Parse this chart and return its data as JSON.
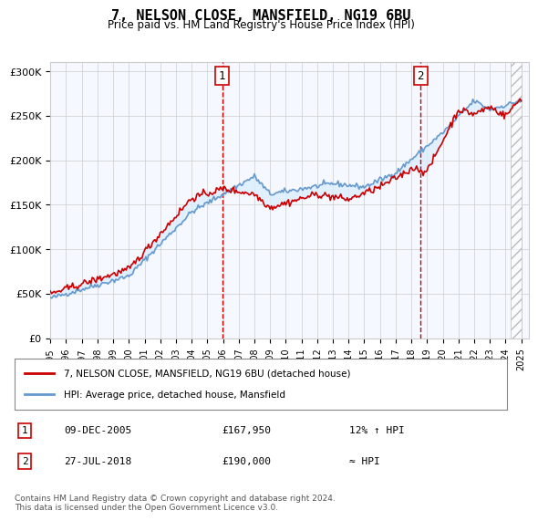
{
  "title": "7, NELSON CLOSE, MANSFIELD, NG19 6BU",
  "subtitle": "Price paid vs. HM Land Registry's House Price Index (HPI)",
  "ylabel_ticks": [
    0,
    50000,
    100000,
    150000,
    200000,
    250000,
    300000
  ],
  "ylabel_labels": [
    "£0",
    "£50K",
    "£100K",
    "£150K",
    "£200K",
    "£250K",
    "£300K"
  ],
  "xlim": [
    1995.0,
    2025.5
  ],
  "ylim": [
    0,
    310000
  ],
  "sale1_year": 2005.95,
  "sale1_price": 167950,
  "sale1_label": "1",
  "sale1_date": "09-DEC-2005",
  "sale1_text": "£167,950",
  "sale1_hpi": "12% ↑ HPI",
  "sale2_year": 2018.58,
  "sale2_price": 190000,
  "sale2_label": "2",
  "sale2_date": "27-JUL-2018",
  "sale2_text": "£190,000",
  "sale2_hpi": "≈ HPI",
  "line1_label": "7, NELSON CLOSE, MANSFIELD, NG19 6BU (detached house)",
  "line2_label": "HPI: Average price, detached house, Mansfield",
  "line1_color": "#cc0000",
  "line2_color": "#6699cc",
  "fill_color": "#ddeeff",
  "hatch_color": "#cccccc",
  "footer": "Contains HM Land Registry data © Crown copyright and database right 2024.\nThis data is licensed under the Open Government Licence v3.0.",
  "bg_color": "#ffffff",
  "plot_bg": "#f5f8ff"
}
